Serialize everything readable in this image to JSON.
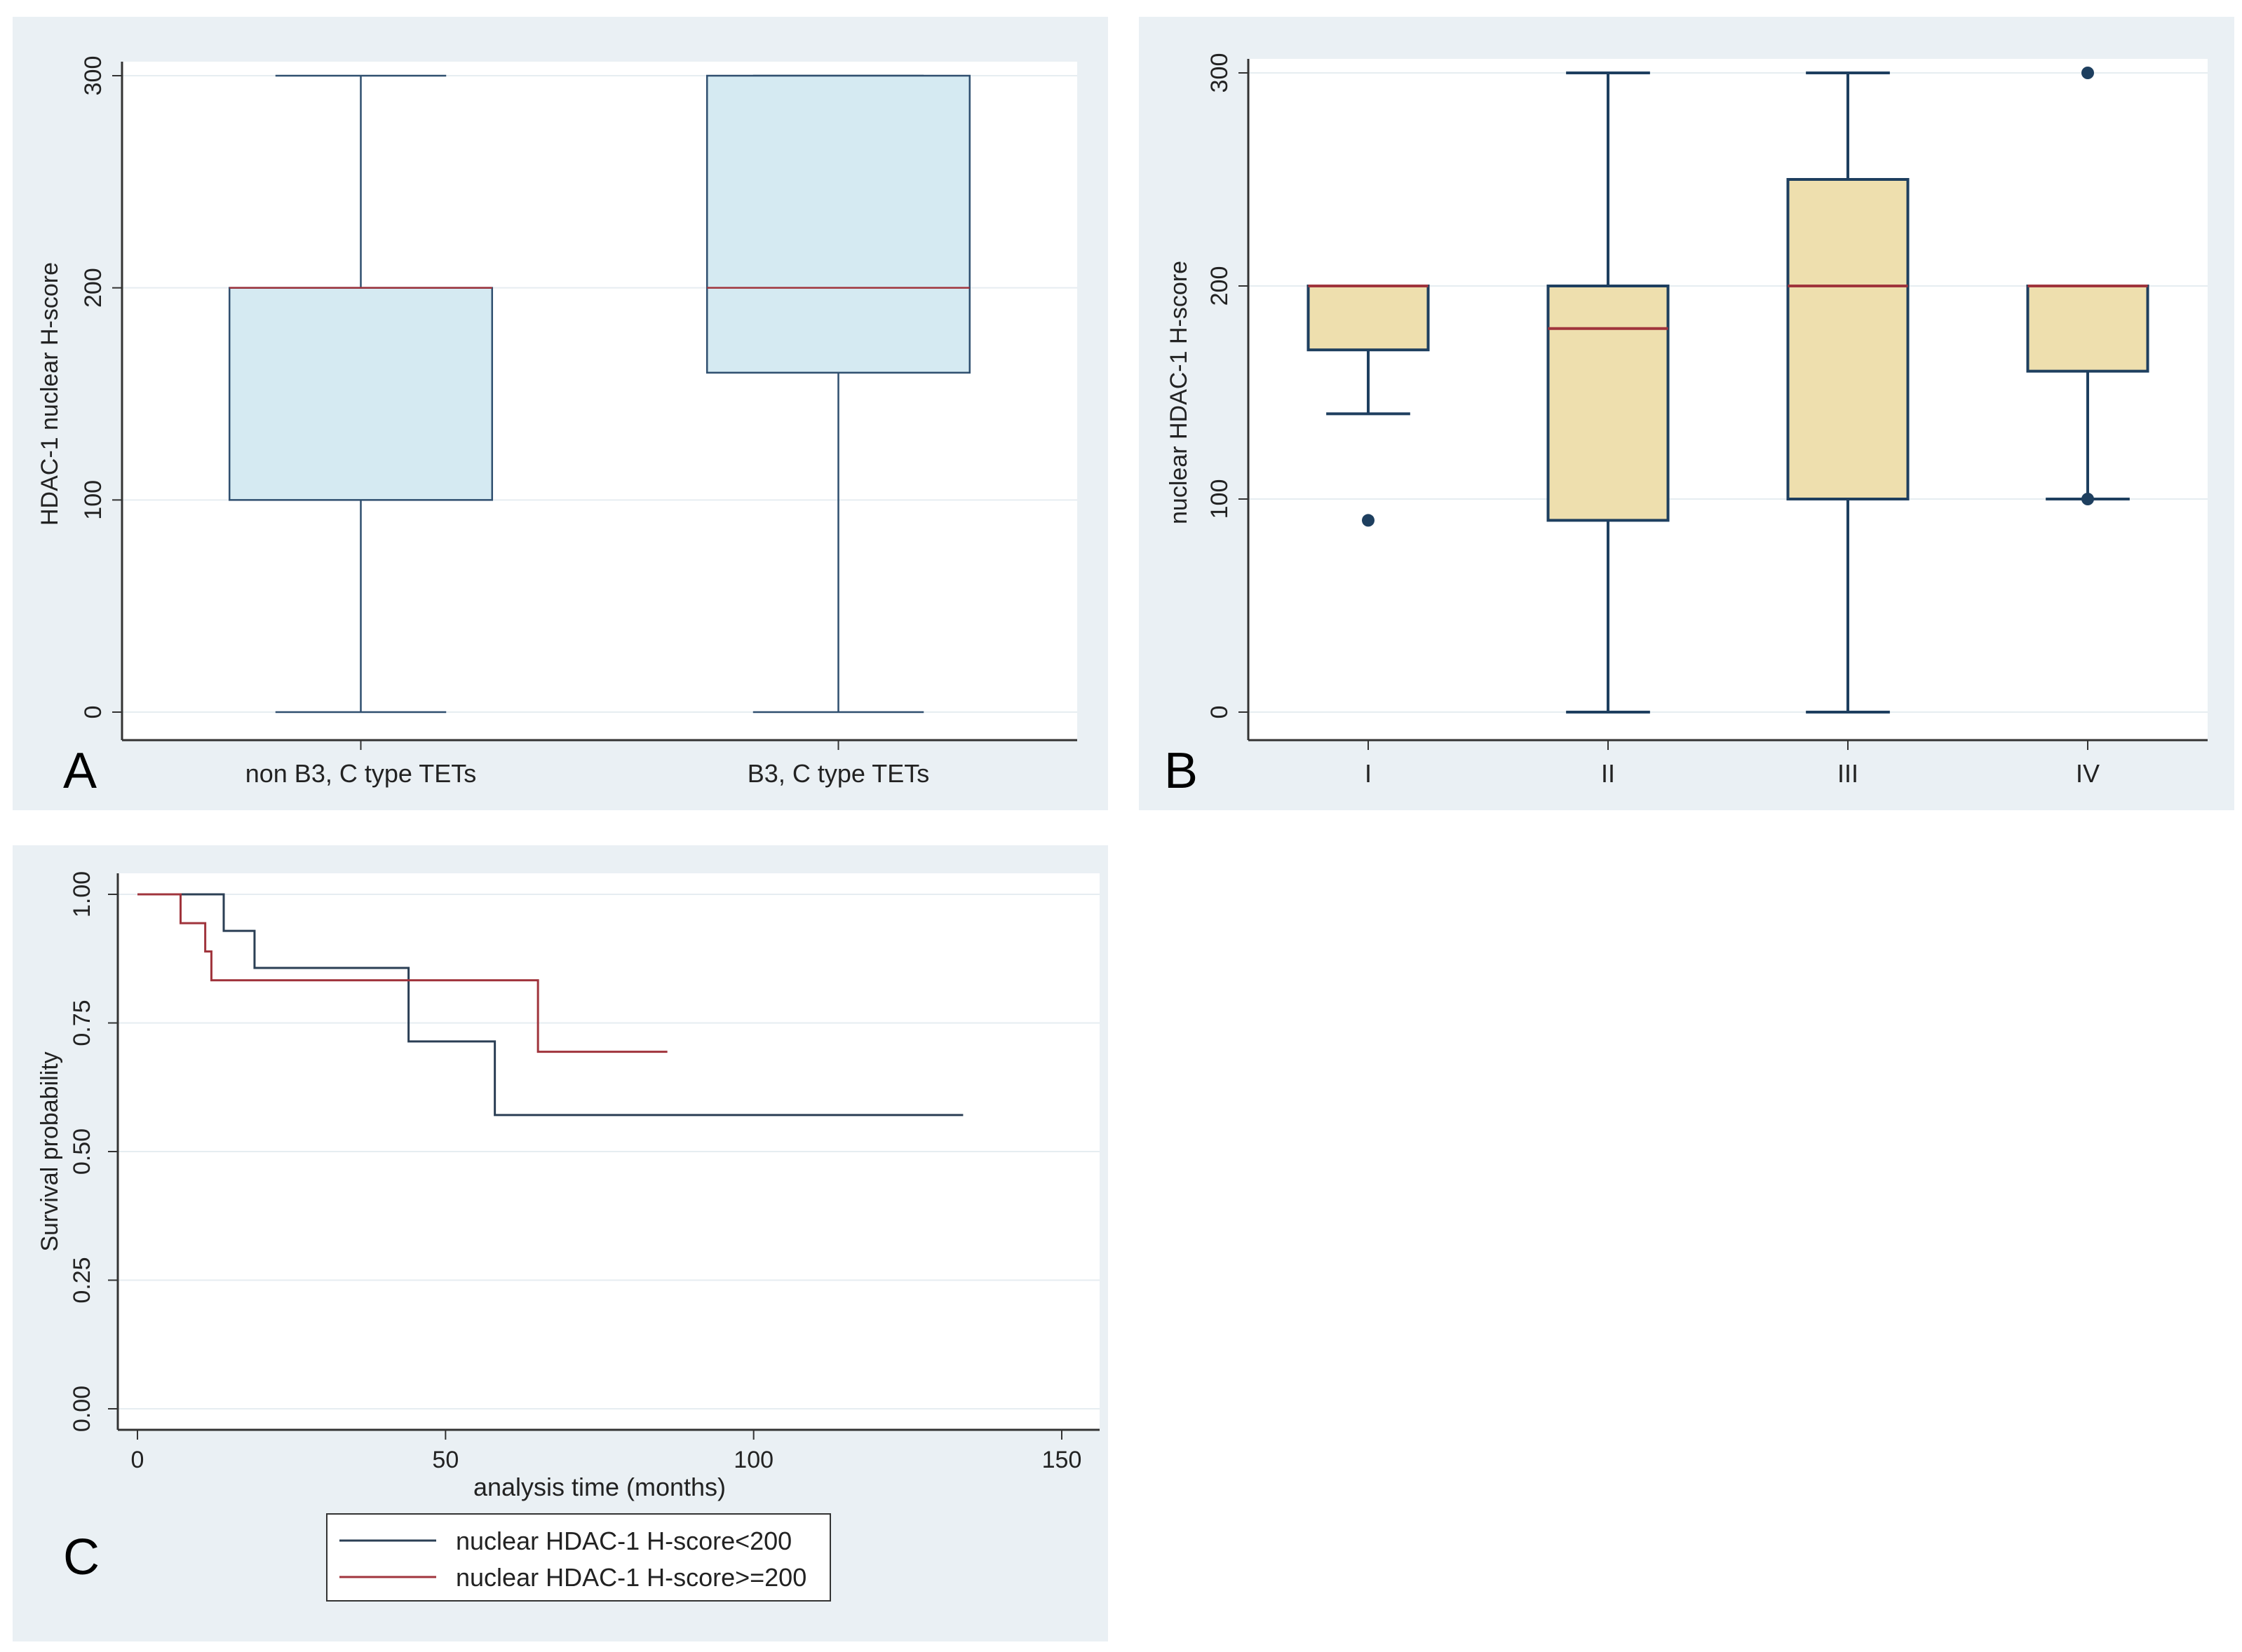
{
  "chart_data": [
    {
      "type": "box",
      "panel_letter": "A",
      "title": "",
      "ylabel": "HDAC-1 nuclear H-score",
      "xlabel": "",
      "ylim": [
        0,
        300
      ],
      "yticks": [
        "0",
        "100",
        "200",
        "300"
      ],
      "grid": true,
      "box_color": "#d5eaf2",
      "line_color": "#2f4f6f",
      "median_color": "#a0343c",
      "categories": [
        "non B3, C type TETs",
        "B3, C type TETs"
      ],
      "boxes": [
        {
          "label": "non B3, C type TETs",
          "whisker_low": 0,
          "q1": 100,
          "median": 200,
          "q3": 200,
          "whisker_high": 300,
          "outliers": []
        },
        {
          "label": "B3, C type TETs",
          "whisker_low": 0,
          "q1": 160,
          "median": 200,
          "q3": 300,
          "whisker_high": 300,
          "outliers": []
        }
      ]
    },
    {
      "type": "box",
      "panel_letter": "B",
      "title": "",
      "ylabel": "nuclear HDAC-1 H-score",
      "xlabel": "",
      "ylim": [
        0,
        300
      ],
      "yticks": [
        "0",
        "100",
        "200",
        "300"
      ],
      "grid": true,
      "box_color": "#eedfae",
      "line_color": "#1e3f5f",
      "median_color": "#a0343c",
      "categories": [
        "I",
        "II",
        "III",
        "IV"
      ],
      "boxes": [
        {
          "label": "I",
          "whisker_low": 140,
          "q1": 170,
          "median": 200,
          "q3": 200,
          "whisker_high": 200,
          "outliers": [
            90
          ]
        },
        {
          "label": "II",
          "whisker_low": 0,
          "q1": 90,
          "median": 180,
          "q3": 200,
          "whisker_high": 300,
          "outliers": []
        },
        {
          "label": "III",
          "whisker_low": 0,
          "q1": 100,
          "median": 200,
          "q3": 250,
          "whisker_high": 300,
          "outliers": []
        },
        {
          "label": "IV",
          "whisker_low": 100,
          "q1": 160,
          "median": 200,
          "q3": 200,
          "whisker_high": 200,
          "outliers": [
            300,
            100
          ]
        }
      ]
    },
    {
      "type": "line",
      "subtype": "step (Kaplan-Meier)",
      "panel_letter": "C",
      "title": "",
      "ylabel": "Survival probability",
      "xlabel": "analysis time (months)",
      "xlim": [
        0,
        150
      ],
      "ylim": [
        0,
        1
      ],
      "xticks": [
        "0",
        "50",
        "100",
        "150"
      ],
      "yticks": [
        "0.00",
        "0.25",
        "0.50",
        "0.75",
        "1.00"
      ],
      "grid": true,
      "legend_position": "bottom",
      "series": [
        {
          "name": "nuclear HDAC-1 H-score<200",
          "color": "#2b3f55",
          "x": [
            0,
            14,
            19,
            44,
            58,
            134
          ],
          "y": [
            1.0,
            0.929,
            0.857,
            0.714,
            0.571,
            0.571
          ]
        },
        {
          "name": "nuclear HDAC-1 H-score>=200",
          "color": "#a0343c",
          "x": [
            0,
            7,
            11,
            12,
            65,
            86
          ],
          "y": [
            1.0,
            0.944,
            0.889,
            0.833,
            0.694,
            0.694
          ]
        }
      ]
    }
  ]
}
